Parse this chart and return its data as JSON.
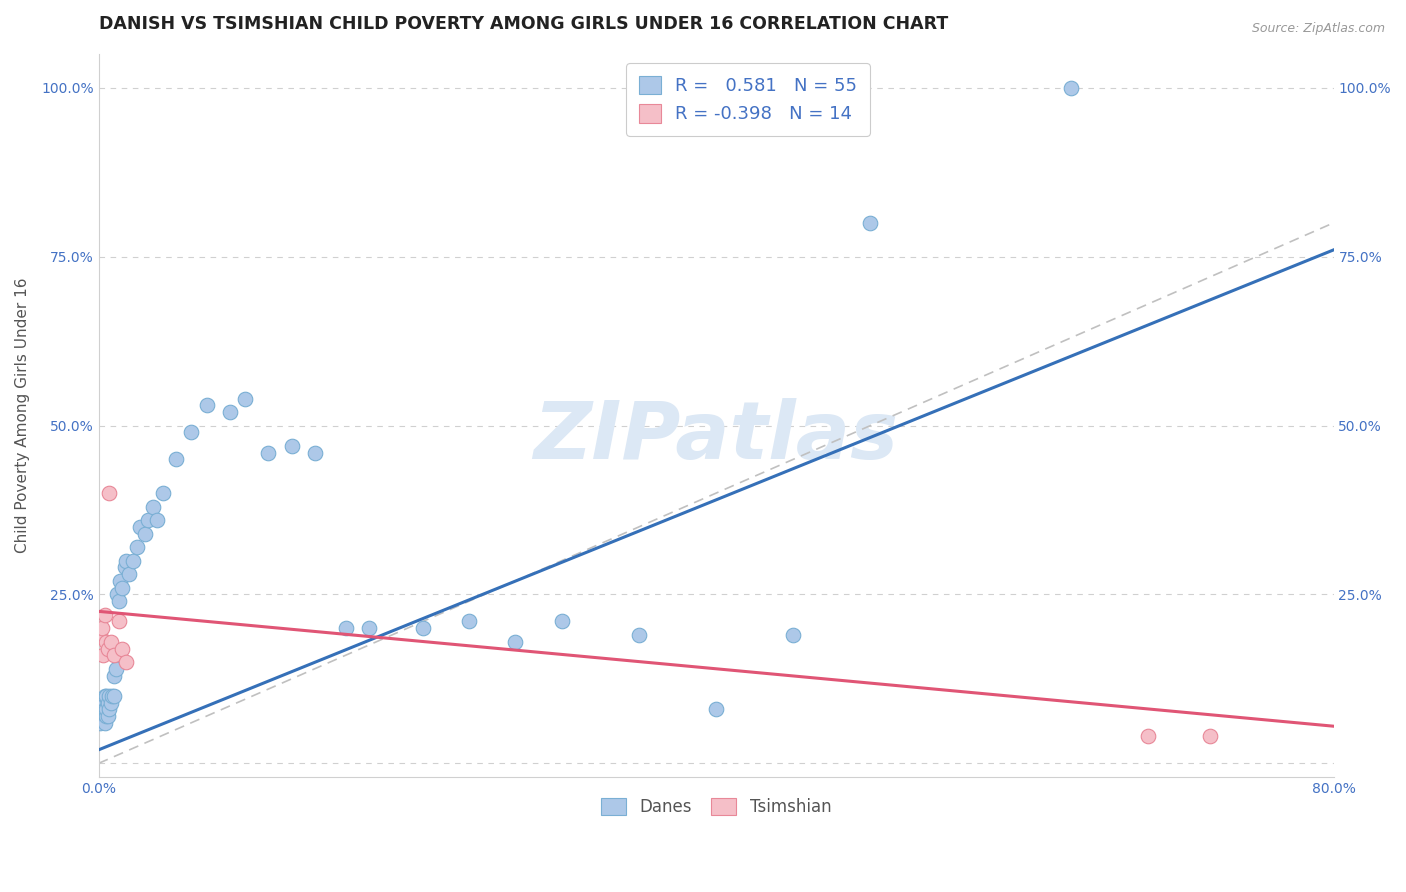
{
  "title": "DANISH VS TSIMSHIAN CHILD POVERTY AMONG GIRLS UNDER 16 CORRELATION CHART",
  "source": "Source: ZipAtlas.com",
  "ylabel": "Child Poverty Among Girls Under 16",
  "xlim": [
    0.0,
    0.8
  ],
  "ylim": [
    -0.02,
    1.05
  ],
  "x_ticks": [
    0.0,
    0.1,
    0.2,
    0.3,
    0.4,
    0.5,
    0.6,
    0.7,
    0.8
  ],
  "y_ticks": [
    0.0,
    0.25,
    0.5,
    0.75,
    1.0
  ],
  "danes_color": "#adc8e8",
  "danes_edge_color": "#7aafd4",
  "tsimshian_color": "#f5bfc8",
  "tsimshian_edge_color": "#e88898",
  "danes_line_color": "#3570b8",
  "tsimshian_line_color": "#e05575",
  "diag_line_color": "#c0c0c0",
  "watermark_color": "#dce8f5",
  "danes_R": 0.581,
  "danes_N": 55,
  "tsimshian_R": -0.398,
  "tsimshian_N": 14,
  "danes_x": [
    0.001,
    0.002,
    0.002,
    0.003,
    0.003,
    0.003,
    0.004,
    0.004,
    0.004,
    0.005,
    0.005,
    0.005,
    0.006,
    0.006,
    0.007,
    0.007,
    0.008,
    0.009,
    0.01,
    0.01,
    0.011,
    0.012,
    0.013,
    0.014,
    0.015,
    0.017,
    0.018,
    0.02,
    0.022,
    0.025,
    0.027,
    0.03,
    0.032,
    0.035,
    0.038,
    0.042,
    0.05,
    0.06,
    0.07,
    0.085,
    0.095,
    0.11,
    0.125,
    0.14,
    0.16,
    0.175,
    0.21,
    0.24,
    0.27,
    0.3,
    0.35,
    0.4,
    0.45,
    0.5,
    0.63
  ],
  "danes_y": [
    0.06,
    0.07,
    0.08,
    0.07,
    0.08,
    0.09,
    0.06,
    0.08,
    0.1,
    0.07,
    0.08,
    0.1,
    0.07,
    0.09,
    0.08,
    0.1,
    0.09,
    0.1,
    0.1,
    0.13,
    0.14,
    0.25,
    0.24,
    0.27,
    0.26,
    0.29,
    0.3,
    0.28,
    0.3,
    0.32,
    0.35,
    0.34,
    0.36,
    0.38,
    0.36,
    0.4,
    0.45,
    0.49,
    0.53,
    0.52,
    0.54,
    0.46,
    0.47,
    0.46,
    0.2,
    0.2,
    0.2,
    0.21,
    0.18,
    0.21,
    0.19,
    0.08,
    0.19,
    0.8,
    1.0
  ],
  "tsimshian_x": [
    0.001,
    0.002,
    0.003,
    0.004,
    0.005,
    0.006,
    0.007,
    0.008,
    0.01,
    0.013,
    0.015,
    0.018,
    0.68,
    0.72
  ],
  "tsimshian_y": [
    0.19,
    0.2,
    0.16,
    0.22,
    0.18,
    0.17,
    0.4,
    0.18,
    0.16,
    0.21,
    0.17,
    0.15,
    0.04,
    0.04
  ],
  "danes_trend_x": [
    0.0,
    0.8
  ],
  "danes_trend_y": [
    0.02,
    0.76
  ],
  "tsimshian_trend_x": [
    0.0,
    0.8
  ],
  "tsimshian_trend_y": [
    0.225,
    0.055
  ],
  "background_color": "#ffffff",
  "grid_color": "#d0d0d0",
  "tick_color": "#4472c4",
  "title_fontsize": 12.5,
  "axis_label_fontsize": 11,
  "tick_fontsize": 10,
  "legend_fontsize": 13,
  "marker_size": 110
}
